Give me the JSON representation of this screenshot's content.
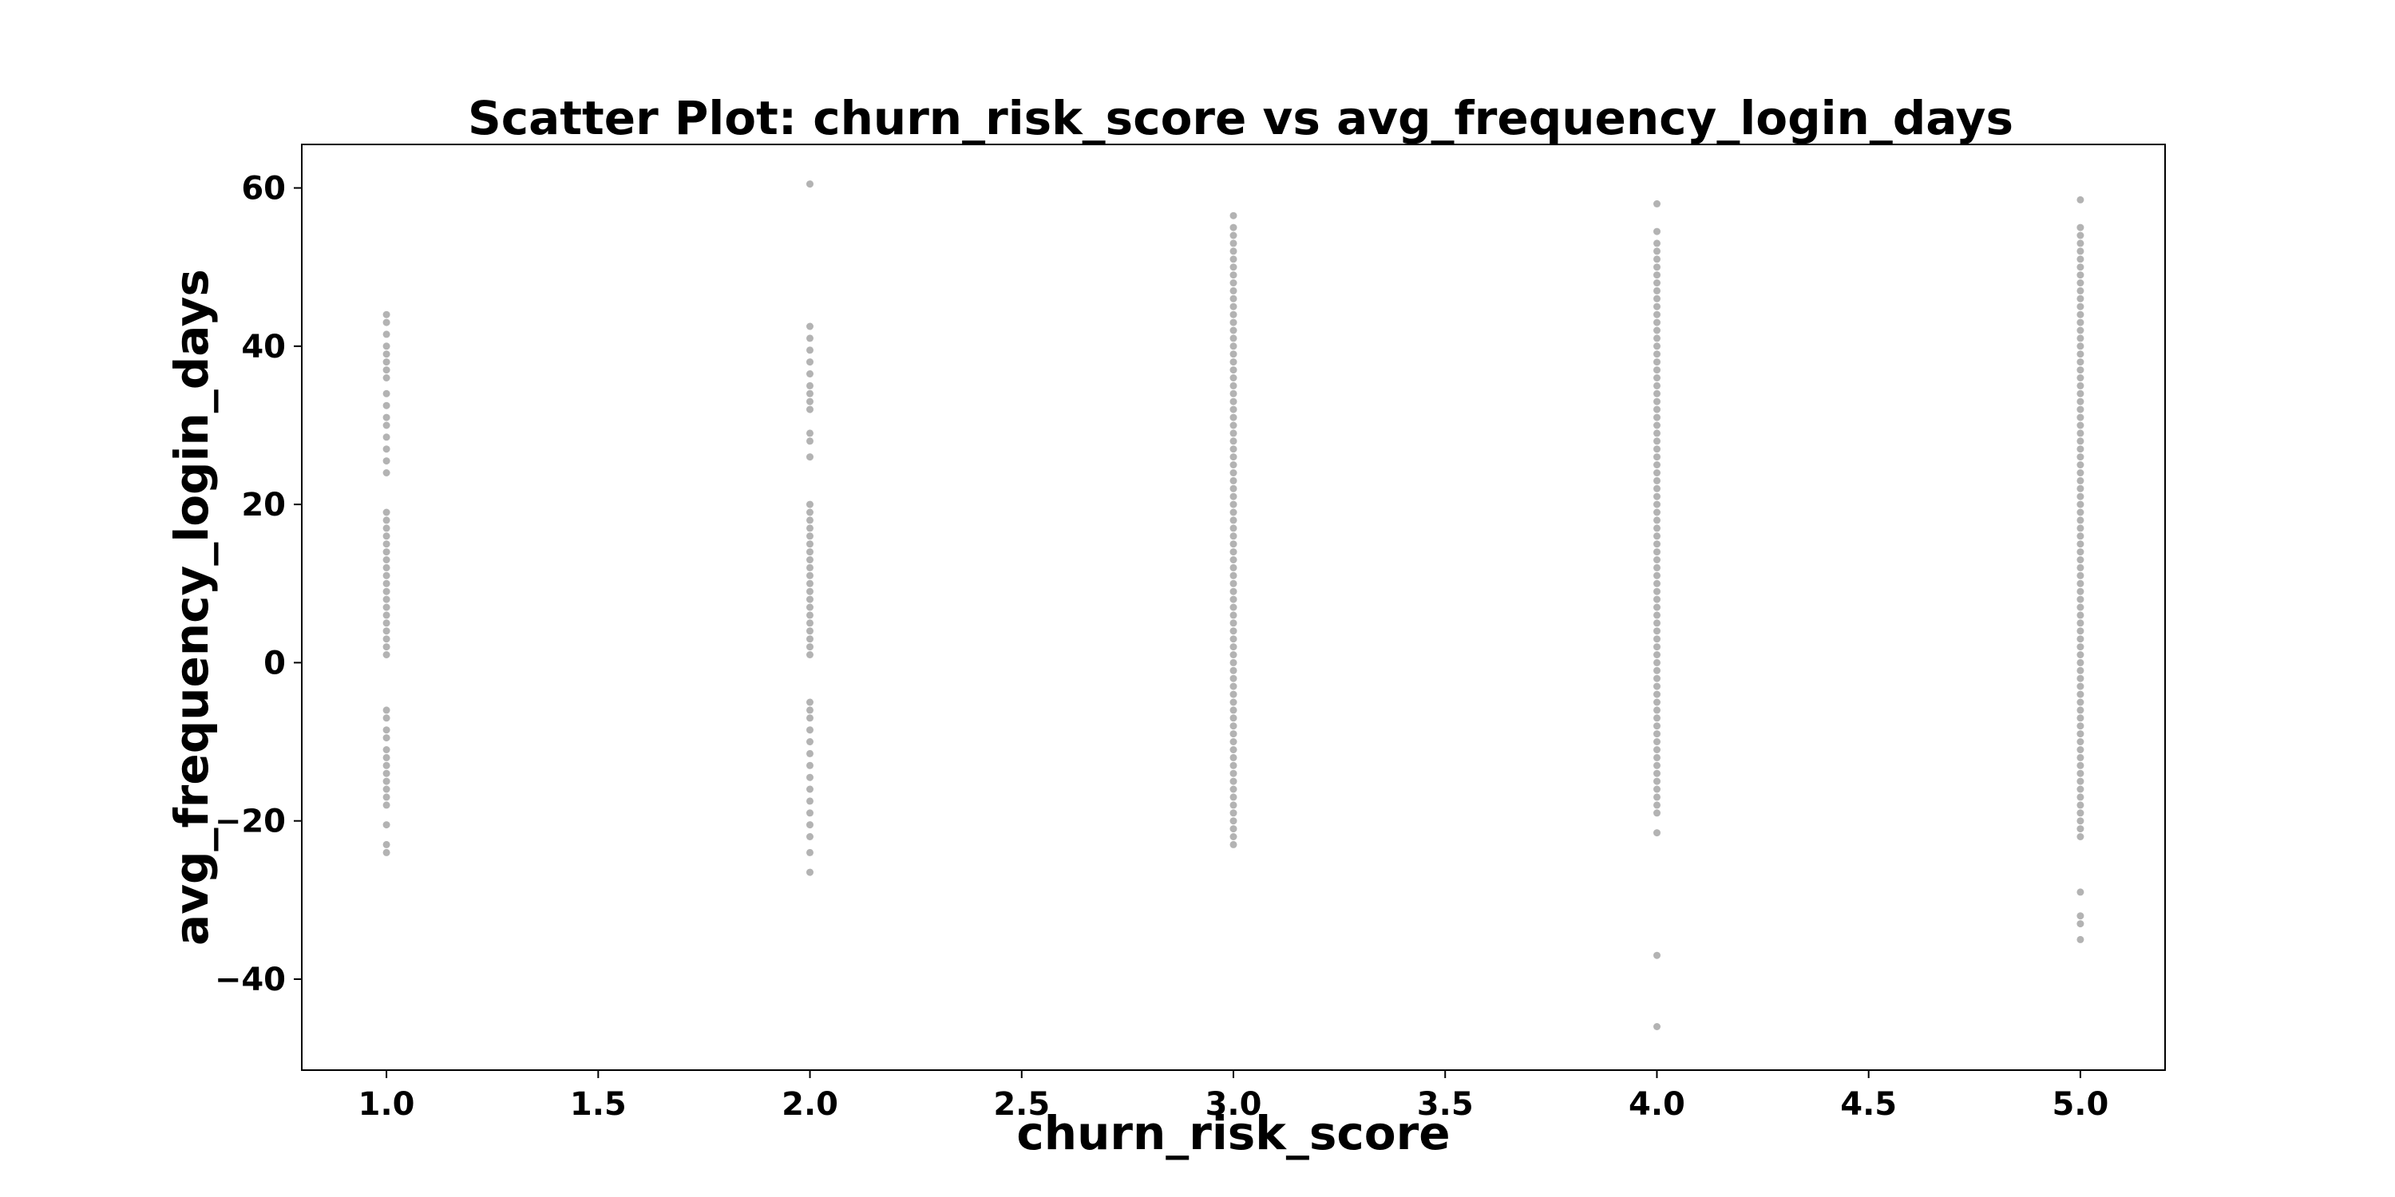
{
  "chart_data": {
    "type": "scatter",
    "title": "Scatter Plot: churn_risk_score vs avg_frequency_login_days",
    "xlabel": "churn_risk_score",
    "ylabel": "avg_frequency_login_days",
    "xlim": [
      0.8,
      5.2
    ],
    "ylim": [
      -51.5,
      65.5
    ],
    "x_ticks": [
      1.0,
      1.5,
      2.0,
      2.5,
      3.0,
      3.5,
      4.0,
      4.5,
      5.0
    ],
    "x_tick_labels": [
      "1.0",
      "1.5",
      "2.0",
      "2.5",
      "3.0",
      "3.5",
      "4.0",
      "4.5",
      "5.0"
    ],
    "y_ticks": [
      -40,
      -20,
      0,
      20,
      40,
      60
    ],
    "y_tick_labels": [
      "−40",
      "−20",
      "0",
      "20",
      "40",
      "60"
    ],
    "grid": false,
    "legend": false,
    "marker_color": "#808080",
    "series": [
      {
        "x": 1.0,
        "y": [
          44,
          43,
          41.5,
          40,
          39,
          38,
          37,
          36,
          34,
          32.5,
          31,
          30,
          28.5,
          27,
          25.5,
          24,
          19,
          18,
          17,
          16,
          15,
          14,
          13,
          12,
          11,
          10,
          9,
          8,
          7,
          6,
          5,
          4,
          3,
          2,
          1,
          -6,
          -7,
          -8.5,
          -9.5,
          -11,
          -12,
          -13,
          -14,
          -15,
          -16,
          -17,
          -18,
          -20.5,
          -23,
          -24
        ]
      },
      {
        "x": 2.0,
        "y": [
          60.5,
          42.5,
          41,
          39.5,
          38,
          36.5,
          35,
          34,
          33,
          32,
          29,
          28,
          26,
          20,
          19,
          18,
          17,
          16,
          15,
          14,
          13,
          12,
          11,
          10,
          9,
          8,
          7,
          6,
          5,
          4,
          3,
          2,
          1,
          -5,
          -6,
          -7,
          -8.5,
          -10,
          -11.5,
          -13,
          -14.5,
          -16,
          -17.5,
          -19,
          -20.5,
          -22,
          -24,
          -26.5
        ]
      },
      {
        "x": 3.0,
        "y": [
          56.5,
          55,
          54,
          53,
          52,
          51,
          50,
          49,
          48,
          47,
          46,
          45,
          44,
          43,
          42,
          41,
          40,
          39,
          38,
          37,
          36,
          35,
          34,
          33,
          32,
          31,
          30,
          29,
          28,
          27,
          26,
          25,
          24,
          23,
          22,
          21,
          20,
          19,
          18,
          17,
          16,
          15,
          14,
          13,
          12,
          11,
          10,
          9,
          8,
          7,
          6,
          5,
          4,
          3,
          2,
          1,
          0,
          -1,
          -2,
          -3,
          -4,
          -5,
          -6,
          -7,
          -8,
          -9,
          -10,
          -11,
          -12,
          -13,
          -14,
          -15,
          -16,
          -17,
          -18,
          -19,
          -20,
          -21,
          -22,
          -23
        ]
      },
      {
        "x": 4.0,
        "y": [
          58,
          54.5,
          53,
          52,
          51,
          50,
          49,
          48,
          47,
          46,
          45,
          44,
          43,
          42,
          41,
          40,
          39,
          38,
          37,
          36,
          35,
          34,
          33,
          32,
          31,
          30,
          29,
          28,
          27,
          26,
          25,
          24,
          23,
          22,
          21,
          20,
          19,
          18,
          17,
          16,
          15,
          14,
          13,
          12,
          11,
          10,
          9,
          8,
          7,
          6,
          5,
          4,
          3,
          2,
          1,
          0,
          -1,
          -2,
          -3,
          -4,
          -5,
          -6,
          -7,
          -8,
          -9,
          -10,
          -11,
          -12,
          -13,
          -14,
          -15,
          -16,
          -17,
          -18,
          -19,
          -21.5,
          -37,
          -46
        ]
      },
      {
        "x": 5.0,
        "y": [
          58.5,
          55,
          54,
          53,
          52,
          51,
          50,
          49,
          48,
          47,
          46,
          45,
          44,
          43,
          42,
          41,
          40,
          39,
          38,
          37,
          36,
          35,
          34,
          33,
          32,
          31,
          30,
          29,
          28,
          27,
          26,
          25,
          24,
          23,
          22,
          21,
          20,
          19,
          18,
          17,
          16,
          15,
          14,
          13,
          12,
          11,
          10,
          9,
          8,
          7,
          6,
          5,
          4,
          3,
          2,
          1,
          0,
          -1,
          -2,
          -3,
          -4,
          -5,
          -6,
          -7,
          -8,
          -9,
          -10,
          -11,
          -12,
          -13,
          -14,
          -15,
          -16,
          -17,
          -18,
          -19,
          -20,
          -21,
          -22,
          -29,
          -32,
          -33,
          -35
        ]
      }
    ]
  }
}
